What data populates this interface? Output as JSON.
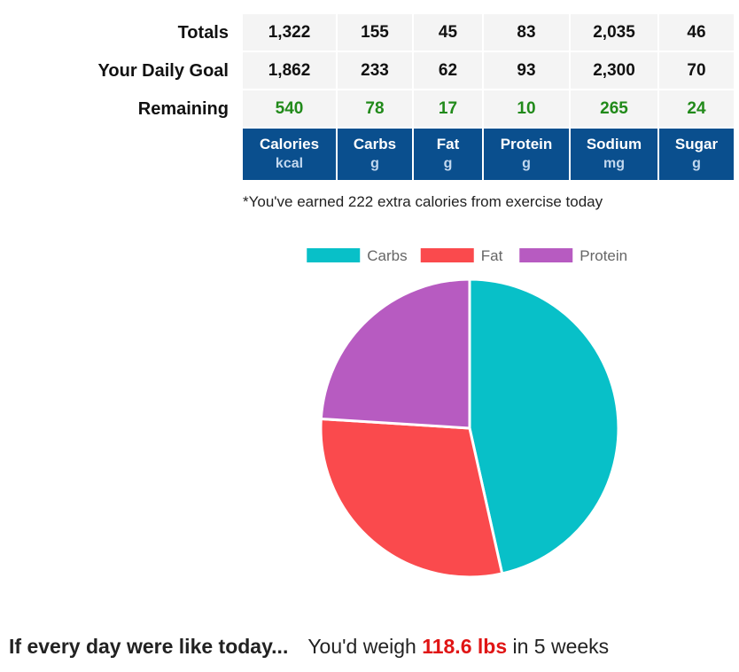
{
  "summary": {
    "rows": [
      {
        "label": "Totals",
        "values": [
          "1,322",
          "155",
          "45",
          "83",
          "2,035",
          "46"
        ]
      },
      {
        "label": "Your Daily Goal",
        "values": [
          "1,862",
          "233",
          "62",
          "93",
          "2,300",
          "70"
        ]
      },
      {
        "label": "Remaining",
        "values": [
          "540",
          "78",
          "17",
          "10",
          "265",
          "24"
        ]
      }
    ],
    "columns": [
      {
        "name": "Calories",
        "unit": "kcal"
      },
      {
        "name": "Carbs",
        "unit": "g"
      },
      {
        "name": "Fat",
        "unit": "g"
      },
      {
        "name": "Protein",
        "unit": "g"
      },
      {
        "name": "Sodium",
        "unit": "mg"
      },
      {
        "name": "Sugar",
        "unit": "g"
      }
    ],
    "remaining_color": "#218a1a",
    "header_bg_color": "#0a4f8e"
  },
  "exercise_note": "*You've earned 222 extra calories from exercise today",
  "chart_data": {
    "type": "pie",
    "title": "",
    "legend_position": "top",
    "categories": [
      "Carbs",
      "Fat",
      "Protein"
    ],
    "values": [
      46.5,
      29.5,
      24.0
    ],
    "colors": [
      "#08c0c8",
      "#fa4a4d",
      "#b75bc1"
    ]
  },
  "projection": {
    "lead": "If every day were like today...",
    "prefix": "You'd weigh",
    "weight": "118.6 lbs",
    "suffix": "in 5 weeks",
    "weight_color": "#e01515"
  }
}
